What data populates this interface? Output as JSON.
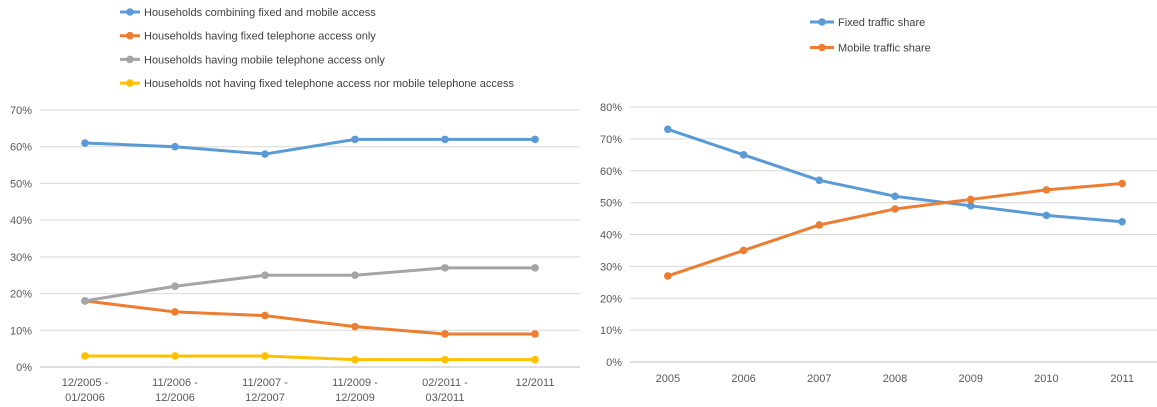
{
  "chart_data": [
    {
      "type": "line",
      "categories": [
        "12/2005 -\n01/2006",
        "11/2006 -\n12/2006",
        "11/2007 -\n12/2007",
        "11/2009 -\n12/2009",
        "02/2011 -\n03/2011",
        "12/2011"
      ],
      "series": [
        {
          "name": "Households combining fixed and mobile access",
          "color": "#5B9BD5",
          "values": [
            61,
            60,
            58,
            62,
            62,
            62
          ]
        },
        {
          "name": "Households having fixed telephone access only",
          "color": "#ED7D31",
          "values": [
            18,
            15,
            14,
            11,
            9,
            9
          ]
        },
        {
          "name": "Households having mobile telephone access only",
          "color": "#A5A5A5",
          "values": [
            18,
            22,
            25,
            25,
            27,
            27
          ]
        },
        {
          "name": "Households not having fixed telephone access nor mobile telephone access",
          "color": "#FFC000",
          "values": [
            3,
            3,
            3,
            2,
            2,
            2
          ]
        }
      ],
      "yticks": [
        "0%",
        "10%",
        "20%",
        "30%",
        "40%",
        "50%",
        "60%",
        "70%"
      ],
      "ylim": [
        0,
        70
      ],
      "grid": true,
      "legend": "top-left"
    },
    {
      "type": "line",
      "categories": [
        "2005",
        "2006",
        "2007",
        "2008",
        "2009",
        "2010",
        "2011"
      ],
      "series": [
        {
          "name": "Fixed traffic share",
          "color": "#5B9BD5",
          "values": [
            73,
            65,
            57,
            52,
            49,
            46,
            44
          ]
        },
        {
          "name": "Mobile traffic share",
          "color": "#ED7D31",
          "values": [
            27,
            35,
            43,
            48,
            51,
            54,
            56
          ]
        }
      ],
      "yticks": [
        "0%",
        "10%",
        "20%",
        "30%",
        "40%",
        "50%",
        "60%",
        "70%",
        "80%"
      ],
      "ylim": [
        0,
        80
      ],
      "grid": true,
      "legend": "top"
    }
  ]
}
